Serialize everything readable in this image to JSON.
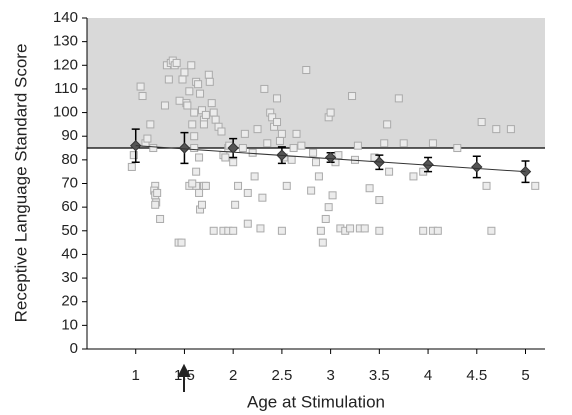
{
  "chart_data": {
    "type": "scatter",
    "x_label": "Age at Stimulation",
    "y_label": "Receptive Language Standard Score",
    "xlim": [
      0.5,
      5.2
    ],
    "ylim": [
      0,
      140
    ],
    "xticks": [
      1,
      1.5,
      2,
      2.5,
      3,
      3.5,
      4,
      4.5,
      5
    ],
    "yticks": [
      0,
      10,
      20,
      30,
      40,
      50,
      60,
      70,
      80,
      90,
      100,
      110,
      120,
      130,
      140
    ],
    "shaded_band": {
      "range": [
        85,
        140
      ],
      "color": "#d9d9d9"
    },
    "series": [
      {
        "kind": "scatter",
        "color": "#aaaaaa",
        "x": [
          0.96,
          0.98,
          1.05,
          1.07,
          1.1,
          1.12,
          1.15,
          1.18,
          1.2,
          1.19,
          1.2,
          1.21,
          1.2,
          1.22,
          1.25,
          1.3,
          1.32,
          1.34,
          1.36,
          1.38,
          1.4,
          1.42,
          1.44,
          1.47,
          1.45,
          1.48,
          1.5,
          1.52,
          1.53,
          1.55,
          1.57,
          1.58,
          1.6,
          1.6,
          1.62,
          1.64,
          1.66,
          1.68,
          1.7,
          1.7,
          1.72,
          1.75,
          1.76,
          1.78,
          1.8,
          1.82,
          1.85,
          1.88,
          1.9,
          1.92,
          1.95,
          1.96,
          1.6,
          1.65,
          1.62,
          1.65,
          1.66,
          1.68,
          1.7,
          1.72,
          1.55,
          1.58,
          1.62,
          1.8,
          1.9,
          1.95,
          2.0,
          2.0,
          2.02,
          2.05,
          2.1,
          2.12,
          2.15,
          2.15,
          2.2,
          2.22,
          2.25,
          2.28,
          2.3,
          2.32,
          2.35,
          2.38,
          2.4,
          2.42,
          2.45,
          2.45,
          2.48,
          2.5,
          2.5,
          2.52,
          2.55,
          2.6,
          2.62,
          2.65,
          2.7,
          2.75,
          2.8,
          2.82,
          2.85,
          2.88,
          2.9,
          2.92,
          2.95,
          2.98,
          3.0,
          2.98,
          3.02,
          3.05,
          3.08,
          3.1,
          3.15,
          3.2,
          3.22,
          3.25,
          3.28,
          3.3,
          3.35,
          3.4,
          3.45,
          3.5,
          3.5,
          3.55,
          3.58,
          3.6,
          3.7,
          3.75,
          3.85,
          3.95,
          3.95,
          4.05,
          4.05,
          4.1,
          4.3,
          4.55,
          4.6,
          4.65,
          4.7,
          4.85,
          5.1
        ],
        "values": [
          77,
          82,
          111,
          107,
          87,
          89,
          95,
          85,
          69,
          67,
          65,
          62,
          61,
          66,
          55,
          103,
          120,
          114,
          121,
          122,
          120,
          121,
          45,
          45,
          105,
          114,
          117,
          104,
          103,
          109,
          120,
          95,
          100,
          90,
          113,
          112,
          108,
          101,
          97,
          95,
          99,
          116,
          113,
          104,
          100,
          97,
          94,
          92,
          82,
          81,
          85,
          86,
          85,
          81,
          69,
          66,
          59,
          61,
          69,
          69,
          69,
          70,
          75,
          50,
          50,
          50,
          50,
          79,
          61,
          69,
          85,
          91,
          66,
          53,
          83,
          73,
          93,
          51,
          64,
          110,
          87,
          100,
          98,
          94,
          96,
          106,
          88,
          91,
          50,
          81,
          69,
          80,
          85,
          91,
          86,
          118,
          67,
          83,
          79,
          73,
          50,
          45,
          55,
          98,
          100,
          60,
          65,
          79,
          82,
          51,
          50,
          51,
          107,
          80,
          86,
          51,
          51,
          68,
          81,
          63,
          50,
          87,
          95,
          75,
          106,
          87,
          73,
          75,
          50,
          87,
          50,
          50,
          85,
          96,
          69,
          50,
          93,
          93,
          69
        ]
      },
      {
        "kind": "mean",
        "color": "#555555",
        "x": [
          1,
          1.5,
          2,
          2.5,
          3,
          3.5,
          4,
          4.5,
          5
        ],
        "values": [
          86,
          85,
          85,
          82,
          81,
          79,
          78,
          77,
          75
        ],
        "errors": [
          7,
          6.5,
          4,
          3.5,
          2,
          3,
          3,
          4.5,
          4.5
        ]
      },
      {
        "kind": "line",
        "color": "#333333",
        "x": [
          1,
          5
        ],
        "values": [
          86,
          75
        ]
      }
    ]
  }
}
